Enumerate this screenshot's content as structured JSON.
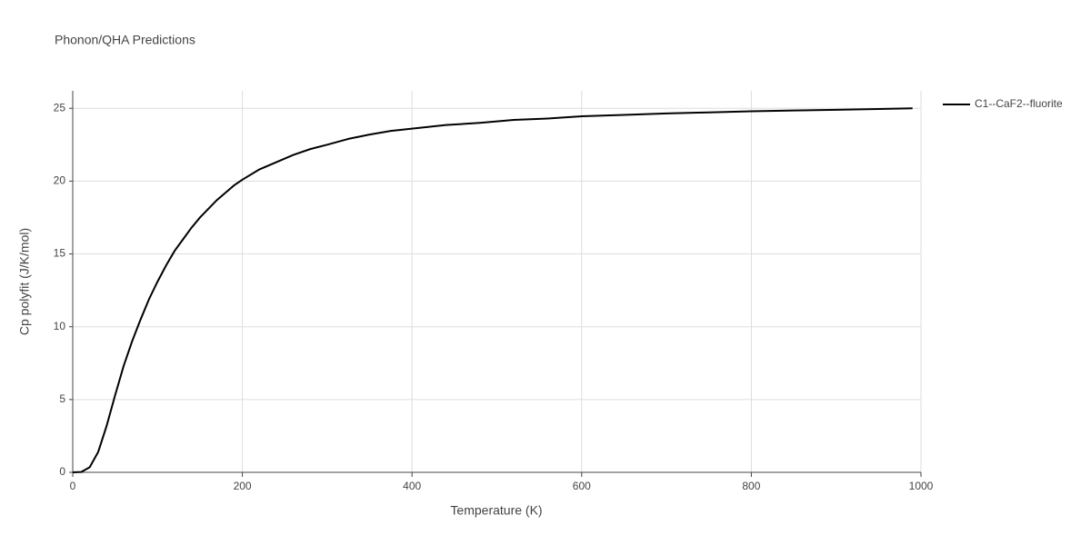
{
  "chart_data": {
    "type": "line",
    "title": "Phonon/QHA Predictions",
    "x_label": "Temperature (K)",
    "y_label": "Cp polyfit (J/K/mol)",
    "x": [
      0,
      10,
      20,
      30,
      40,
      50,
      60,
      70,
      80,
      90,
      100,
      110,
      120,
      130,
      140,
      150,
      160,
      170,
      180,
      190,
      200,
      220,
      240,
      260,
      280,
      300,
      325,
      350,
      375,
      400,
      440,
      480,
      520,
      560,
      600,
      650,
      700,
      750,
      800,
      850,
      900,
      950,
      990
    ],
    "series": [
      {
        "name": "C1--CaF2--fluorite",
        "color": "#000000",
        "values": [
          0,
          0.02,
          0.35,
          1.4,
          3.2,
          5.3,
          7.3,
          9.0,
          10.5,
          11.9,
          13.1,
          14.2,
          15.2,
          16.0,
          16.8,
          17.5,
          18.1,
          18.7,
          19.2,
          19.7,
          20.1,
          20.8,
          21.3,
          21.8,
          22.2,
          22.5,
          22.9,
          23.2,
          23.45,
          23.6,
          23.85,
          24.0,
          24.2,
          24.3,
          24.45,
          24.55,
          24.65,
          24.72,
          24.8,
          24.85,
          24.9,
          24.95,
          25.0
        ]
      }
    ],
    "xlim": [
      0,
      1000
    ],
    "xticks": [
      0,
      200,
      400,
      600,
      800,
      1000
    ],
    "ylim": [
      0,
      26.2
    ],
    "yticks": [
      0,
      5,
      10,
      15,
      20,
      25
    ],
    "grid": true,
    "legend": "right"
  }
}
